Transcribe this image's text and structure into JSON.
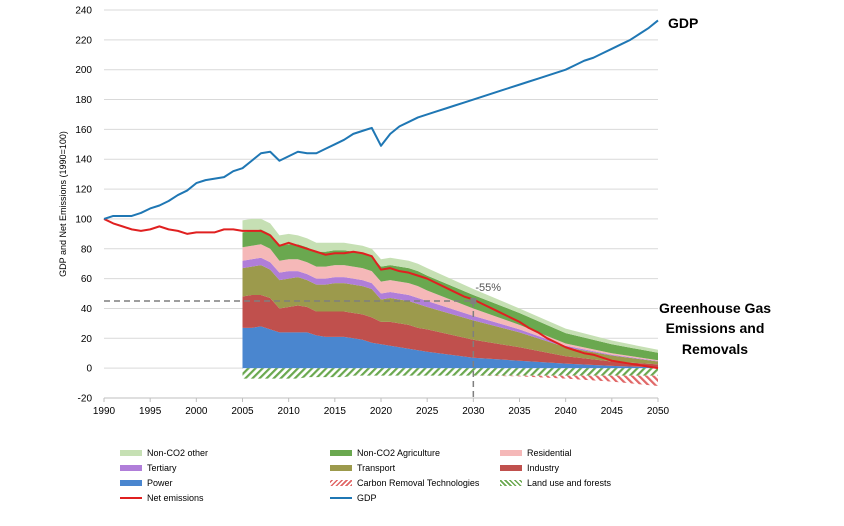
{
  "chart_data": {
    "type": "area",
    "ylabel": "GDP and Net Emissions (1990=100)",
    "xlim": [
      1990,
      2050
    ],
    "ylim": [
      -20,
      240
    ],
    "xticks": [
      1990,
      1995,
      2000,
      2005,
      2010,
      2015,
      2020,
      2025,
      2030,
      2035,
      2040,
      2045,
      2050
    ],
    "yticks": [
      -20,
      0,
      20,
      40,
      60,
      80,
      100,
      120,
      140,
      160,
      180,
      200,
      220,
      240
    ],
    "grid": true,
    "legend_position": "bottom",
    "annotations": {
      "gdp": "GDP",
      "ghg": [
        "Greenhouse Gas",
        "Emissions and",
        "Removals"
      ],
      "target_pct": "-55%"
    },
    "target_reference": {
      "year": 2030,
      "value": 45
    },
    "stack_x": [
      2005,
      2006,
      2007,
      2008,
      2009,
      2010,
      2011,
      2012,
      2013,
      2014,
      2015,
      2016,
      2017,
      2018,
      2019,
      2020,
      2021,
      2022,
      2023,
      2024,
      2025,
      2030,
      2035,
      2040,
      2045,
      2050
    ],
    "stacked_series": [
      {
        "name": "Power",
        "color": "#4a86cf",
        "values": [
          27,
          27,
          28,
          26,
          24,
          24,
          24,
          24,
          22,
          21,
          21,
          21,
          20,
          19,
          17,
          16,
          15,
          14,
          13,
          12,
          11,
          7,
          5,
          3,
          1.5,
          0.5
        ]
      },
      {
        "name": "Industry",
        "color": "#c0504d",
        "values": [
          21,
          22,
          21,
          21,
          16,
          17,
          18,
          17,
          16,
          17,
          17,
          17,
          17,
          17,
          17,
          15,
          16,
          16,
          16,
          15,
          15,
          12,
          9,
          5,
          3,
          2
        ]
      },
      {
        "name": "Transport",
        "color": "#9c9a4c",
        "values": [
          19,
          19,
          20,
          19,
          19,
          19,
          19,
          18,
          18,
          18,
          19,
          19,
          19,
          19,
          19,
          15,
          16,
          16,
          16,
          16,
          15,
          13,
          10,
          6,
          4,
          2
        ]
      },
      {
        "name": "Tertiary",
        "color": "#b07ed9",
        "values": [
          5,
          5,
          5,
          5,
          5,
          5,
          4,
          4,
          4,
          4,
          4,
          4,
          4,
          4,
          4,
          4,
          4,
          4,
          4,
          4,
          4,
          3,
          2,
          1,
          0.5,
          0.3
        ]
      },
      {
        "name": "Residential",
        "color": "#f5b8b8",
        "values": [
          9,
          9,
          9,
          9,
          8,
          8,
          8,
          8,
          8,
          8,
          8,
          8,
          8,
          8,
          8,
          8,
          8,
          8,
          8,
          8,
          7,
          5,
          3,
          1.5,
          1,
          0.5
        ]
      },
      {
        "name": "Non-CO2 Agriculture",
        "color": "#6aa84f",
        "values": [
          10,
          10,
          10,
          10,
          10,
          10,
          10,
          10,
          10,
          10,
          10,
          10,
          10,
          10,
          10,
          10,
          10,
          10,
          10,
          10,
          10,
          9,
          8,
          7,
          6,
          5
        ]
      },
      {
        "name": "Non-CO2 other",
        "color": "#c6e0b4",
        "values": [
          8,
          8,
          7,
          7,
          7,
          7,
          6,
          6,
          6,
          6,
          5,
          5,
          5,
          5,
          5,
          5,
          5,
          5,
          5,
          5,
          5,
          4,
          3,
          3,
          2.5,
          2
        ]
      }
    ],
    "negative_series": [
      {
        "name": "Land use and forests",
        "color": "#6aa84f",
        "pattern": "hatch-green",
        "values": [
          -7,
          -7,
          -7,
          -7,
          -7,
          -7,
          -7,
          -6,
          -6,
          -6,
          -6,
          -6,
          -5,
          -5,
          -5,
          -5,
          -5,
          -5,
          -5,
          -5,
          -5,
          -5,
          -5,
          -5,
          -5,
          -5
        ]
      },
      {
        "name": "Carbon Removal Technologies",
        "color": "#e06666",
        "pattern": "hatch-red",
        "values": [
          0,
          0,
          0,
          0,
          0,
          0,
          0,
          0,
          0,
          0,
          0,
          0,
          0,
          0,
          0,
          0,
          0,
          0,
          0,
          0,
          0,
          0,
          -0.5,
          -2,
          -4,
          -7
        ]
      }
    ],
    "line_series": [
      {
        "name": "Net emissions",
        "color": "#e02020",
        "x": [
          1990,
          1991,
          1992,
          1993,
          1994,
          1995,
          1996,
          1997,
          1998,
          1999,
          2000,
          2001,
          2002,
          2003,
          2004,
          2005,
          2006,
          2007,
          2008,
          2009,
          2010,
          2011,
          2012,
          2013,
          2014,
          2015,
          2016,
          2017,
          2018,
          2019,
          2020,
          2021,
          2022,
          2023,
          2024,
          2025,
          2026,
          2027,
          2028,
          2029,
          2030,
          2031,
          2032,
          2033,
          2034,
          2035,
          2036,
          2037,
          2038,
          2039,
          2040,
          2041,
          2042,
          2043,
          2044,
          2045,
          2046,
          2047,
          2048,
          2049,
          2050
        ],
        "values": [
          100,
          97,
          95,
          93,
          92,
          93,
          95,
          93,
          92,
          90,
          91,
          91,
          91,
          93,
          93,
          92,
          92,
          92,
          89,
          82,
          84,
          82,
          80,
          78,
          76,
          77,
          77,
          78,
          77,
          75,
          66,
          67,
          65,
          64,
          62,
          60,
          57,
          54,
          51,
          48,
          46,
          43,
          40,
          37,
          34,
          31,
          27,
          24,
          20,
          17,
          14,
          12,
          10,
          9,
          7,
          5,
          4,
          3,
          2,
          1,
          0
        ]
      },
      {
        "name": "GDP",
        "color": "#1f77b4",
        "x": [
          1990,
          1991,
          1992,
          1993,
          1994,
          1995,
          1996,
          1997,
          1998,
          1999,
          2000,
          2001,
          2002,
          2003,
          2004,
          2005,
          2006,
          2007,
          2008,
          2009,
          2010,
          2011,
          2012,
          2013,
          2014,
          2015,
          2016,
          2017,
          2018,
          2019,
          2020,
          2021,
          2022,
          2023,
          2024,
          2025,
          2026,
          2027,
          2028,
          2029,
          2030,
          2031,
          2032,
          2033,
          2034,
          2035,
          2036,
          2037,
          2038,
          2039,
          2040,
          2041,
          2042,
          2043,
          2044,
          2045,
          2046,
          2047,
          2048,
          2049,
          2050
        ],
        "values": [
          100,
          102,
          102,
          102,
          104,
          107,
          109,
          112,
          116,
          119,
          124,
          126,
          127,
          128,
          132,
          134,
          139,
          144,
          145,
          139,
          142,
          145,
          144,
          144,
          147,
          150,
          153,
          157,
          159,
          161,
          149,
          157,
          162,
          165,
          168,
          170,
          172,
          174,
          176,
          178,
          180,
          182,
          184,
          186,
          188,
          190,
          192,
          194,
          196,
          198,
          200,
          203,
          206,
          208,
          211,
          214,
          217,
          220,
          224,
          228,
          233
        ]
      }
    ],
    "legend": [
      {
        "label": "Non-CO2 other",
        "kind": "fill",
        "color": "#c6e0b4"
      },
      {
        "label": "Non-CO2 Agriculture",
        "kind": "fill",
        "color": "#6aa84f"
      },
      {
        "label": "Residential",
        "kind": "fill",
        "color": "#f5b8b8"
      },
      {
        "label": "Tertiary",
        "kind": "fill",
        "color": "#b07ed9"
      },
      {
        "label": "Transport",
        "kind": "fill",
        "color": "#9c9a4c"
      },
      {
        "label": "Industry",
        "kind": "fill",
        "color": "#c0504d"
      },
      {
        "label": "Power",
        "kind": "fill",
        "color": "#4a86cf"
      },
      {
        "label": "Carbon Removal Technologies",
        "kind": "hatch-red",
        "color": "#e06666"
      },
      {
        "label": "Land use and forests",
        "kind": "hatch-green",
        "color": "#6aa84f"
      },
      {
        "label": "Net emissions",
        "kind": "line",
        "color": "#e02020"
      },
      {
        "label": "GDP",
        "kind": "line",
        "color": "#1f77b4"
      }
    ]
  }
}
